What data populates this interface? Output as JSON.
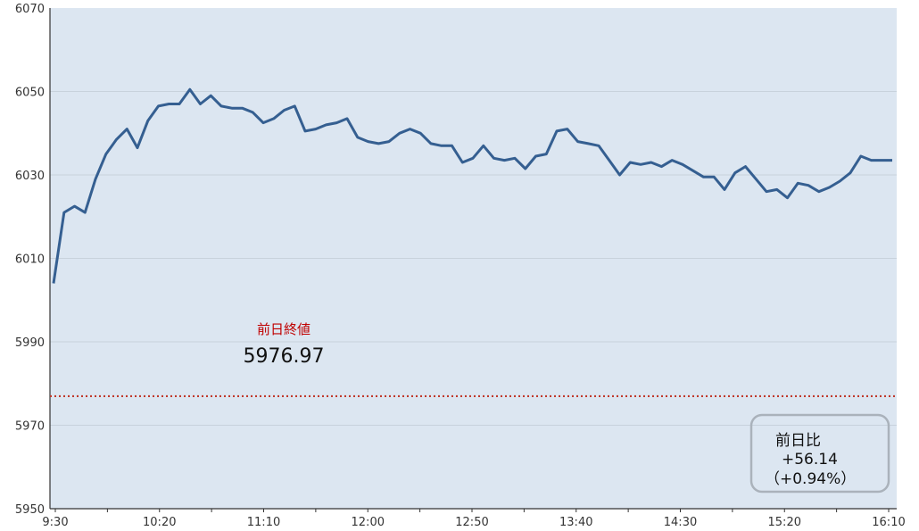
{
  "chart_data": {
    "type": "line",
    "title": "",
    "xlabel": "",
    "ylabel": "",
    "ylim": [
      5950,
      6070
    ],
    "y_ticks": [
      "6070",
      "6050",
      "6030",
      "6010",
      "5990",
      "5970",
      "5950"
    ],
    "x_tick_labels": [
      "9:30",
      "10:20",
      "11:10",
      "12:00",
      "12:50",
      "13:40",
      "14:30",
      "15:20",
      "16:10"
    ],
    "grid": true,
    "colors": {
      "plot_background": "#dce6f1",
      "line": "#355f91",
      "reference_line": "#c0392b",
      "grid": "#c8d2dc"
    },
    "series": [
      {
        "values": [
          6004,
          6021,
          6022.5,
          6021,
          6029,
          6035,
          6038.5,
          6041,
          6036.5,
          6043,
          6046.5,
          6047,
          6047,
          6050.5,
          6047,
          6049,
          6046.5,
          6046,
          6046,
          6045,
          6042.5,
          6043.5,
          6045.5,
          6046.5,
          6040.5,
          6041,
          6042,
          6042.5,
          6043.5,
          6039,
          6038,
          6037.5,
          6038,
          6040,
          6041,
          6040,
          6037.5,
          6037,
          6037,
          6033,
          6034,
          6037,
          6034,
          6033.5,
          6034,
          6031.5,
          6034.5,
          6035,
          6040.5,
          6041,
          6038,
          6037.5,
          6037,
          6033.5,
          6030,
          6033,
          6032.5,
          6033,
          6032,
          6033.5,
          6032.5,
          6031,
          6029.5,
          6029.5,
          6026.5,
          6030.5,
          6032,
          6029,
          6026,
          6026.5,
          6024.5,
          6028,
          6027.5,
          6026,
          6027,
          6028.5,
          6030.5,
          6034.5,
          6033.5,
          6033.5,
          6033.5
        ]
      }
    ],
    "reference_line": {
      "label": "前日終値",
      "value": 5976.97,
      "value_text": "5976.97"
    },
    "change_box": {
      "label": "前日比",
      "change": "+56.14",
      "percent": "（+0.94%）"
    }
  }
}
